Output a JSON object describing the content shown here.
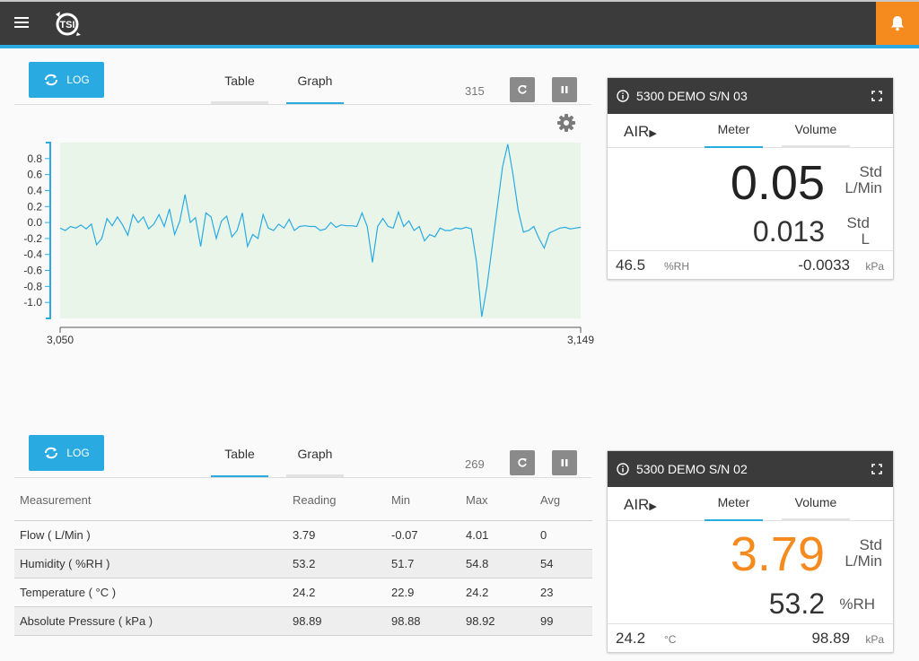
{
  "header": {
    "logo_text": "TSI"
  },
  "panel1": {
    "log_label": "LOG",
    "tabs": [
      {
        "label": "Table"
      },
      {
        "label": "Graph"
      }
    ],
    "active_tab": "Graph",
    "count": "315",
    "chart_data": {
      "type": "line",
      "x_start": 3050,
      "x_end": 3149,
      "x_tick_labels": [
        "3,050",
        "3,149"
      ],
      "y_tick_labels": [
        "0.8",
        "0.6",
        "0.4",
        "0.2",
        "0.0",
        "-0.2",
        "-0.4",
        "-0.6",
        "-0.8",
        "-1.0"
      ],
      "ylim": [
        -1.2,
        1.0
      ],
      "y": [
        -0.07,
        -0.1,
        -0.05,
        -0.07,
        -0.03,
        -0.08,
        -0.02,
        -0.28,
        -0.2,
        0.05,
        -0.04,
        0.07,
        -0.03,
        -0.16,
        0.1,
        0.0,
        0.07,
        -0.08,
        -0.02,
        0.1,
        -0.05,
        0.17,
        -0.15,
        0.02,
        0.35,
        0.0,
        0.06,
        -0.3,
        0.12,
        0.07,
        -0.2,
        0.02,
        0.08,
        -0.18,
        -0.1,
        0.12,
        -0.3,
        -0.15,
        -0.2,
        0.1,
        -0.07,
        -0.1,
        -0.02,
        -0.07,
        0.04,
        -0.1,
        -0.05,
        -0.04,
        -0.05,
        -0.05,
        -0.1,
        -0.08,
        0.0,
        -0.06,
        -0.03,
        -0.04,
        -0.04,
        -0.05,
        0.12,
        -0.05,
        -0.5,
        -0.05,
        0.05,
        -0.05,
        -0.07,
        0.13,
        -0.05,
        0.02,
        -0.1,
        -0.05,
        -0.23,
        -0.15,
        -0.18,
        -0.07,
        -0.1,
        -0.1,
        -0.07,
        -0.08,
        -0.06,
        -0.08,
        -0.5,
        -1.18,
        -0.8,
        -0.3,
        0.2,
        0.7,
        0.98,
        0.6,
        0.15,
        -0.12,
        -0.1,
        -0.05,
        -0.2,
        -0.32,
        -0.13,
        -0.1,
        -0.07,
        -0.06,
        -0.08,
        -0.07,
        -0.06
      ]
    }
  },
  "device1": {
    "title": "5300 DEMO S/N 03",
    "air_label": "AIR",
    "tabs": [
      {
        "label": "Meter"
      },
      {
        "label": "Volume"
      }
    ],
    "primary_value": "0.05",
    "primary_unit_top": "Std",
    "primary_unit_bottom": "L/Min",
    "secondary_value": "0.013",
    "secondary_unit_top": "Std",
    "secondary_unit_bottom": "L",
    "foot_left_value": "46.5",
    "foot_left_unit": "%RH",
    "foot_right_value": "-0.0033",
    "foot_right_unit": "kPa",
    "primary_color": "#222222"
  },
  "panel2": {
    "log_label": "LOG",
    "tabs": [
      {
        "label": "Table"
      },
      {
        "label": "Graph"
      }
    ],
    "active_tab": "Table",
    "count": "269",
    "table": {
      "headers": [
        "Measurement",
        "Reading",
        "Min",
        "Max",
        "Avg"
      ],
      "rows": [
        [
          "Flow ( L/Min )",
          "3.79",
          "-0.07",
          "4.01",
          "0"
        ],
        [
          "Humidity ( %RH )",
          "53.2",
          "51.7",
          "54.8",
          "54"
        ],
        [
          "Temperature ( °C )",
          "24.2",
          "22.9",
          "24.2",
          "23"
        ],
        [
          "Absolute Pressure ( kPa )",
          "98.89",
          "98.88",
          "98.92",
          "99"
        ]
      ]
    }
  },
  "device2": {
    "title": "5300 DEMO S/N 02",
    "air_label": "AIR",
    "tabs": [
      {
        "label": "Meter"
      },
      {
        "label": "Volume"
      }
    ],
    "primary_value": "3.79",
    "primary_unit_top": "Std",
    "primary_unit_bottom": "L/Min",
    "secondary_value": "53.2",
    "secondary_unit": "%RH",
    "foot_left_value": "24.2",
    "foot_left_unit": "°C",
    "foot_right_value": "98.89",
    "foot_right_unit": "kPa",
    "primary_color": "#f58a1f"
  },
  "colors": {
    "accent": "#29abe2",
    "alert": "#f58a1f",
    "plot_bg": "#eaf5ea",
    "line": "#29abe2"
  }
}
